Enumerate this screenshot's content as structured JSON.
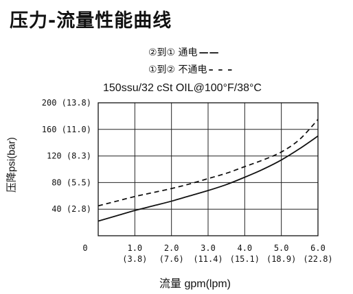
{
  "page": {
    "title": "压力-流量性能曲线"
  },
  "legend": [
    {
      "label": "②到① 通电",
      "sample": "——",
      "style": "solid"
    },
    {
      "label": "①到② 不通电",
      "sample": "– – –",
      "style": "dashed"
    }
  ],
  "chart_data": {
    "type": "line",
    "subtitle": "150ssu/32 cSt OIL@100°F/38°C",
    "xlabel": "流量 gpm(lpm)",
    "ylabel": "压降psi(bar)",
    "xlim": [
      0,
      6.0
    ],
    "ylim": [
      0,
      200
    ],
    "grid": true,
    "x_origin_label": "0",
    "x_ticks": [
      {
        "value": 1.0,
        "label": "1.0",
        "sub": "(3.8)"
      },
      {
        "value": 2.0,
        "label": "2.0",
        "sub": "(7.6)"
      },
      {
        "value": 3.0,
        "label": "3.0",
        "sub": "(11.4)"
      },
      {
        "value": 4.0,
        "label": "4.0",
        "sub": "(15.1)"
      },
      {
        "value": 5.0,
        "label": "5.0",
        "sub": "(18.9)"
      },
      {
        "value": 6.0,
        "label": "6.0",
        "sub": "(22.8)"
      }
    ],
    "y_ticks": [
      {
        "value": 40,
        "label": "40 (2.8)"
      },
      {
        "value": 80,
        "label": "80 (5.5)"
      },
      {
        "value": 120,
        "label": "120 (8.3)"
      },
      {
        "value": 160,
        "label": "160 (11.0)"
      },
      {
        "value": 200,
        "label": "200 (13.8)"
      }
    ],
    "series": [
      {
        "name": "②到① 通电",
        "style": "solid",
        "x": [
          0,
          0.5,
          1.0,
          1.5,
          2.0,
          2.5,
          3.0,
          3.5,
          4.0,
          4.5,
          5.0,
          5.5,
          6.0
        ],
        "y": [
          22,
          30,
          38,
          45,
          52,
          60,
          68,
          77,
          88,
          100,
          114,
          131,
          150
        ]
      },
      {
        "name": "①到② 不通电",
        "style": "dashed",
        "x": [
          0,
          0.5,
          1.0,
          1.5,
          2.0,
          2.5,
          3.0,
          3.5,
          4.0,
          4.5,
          5.0,
          5.5,
          6.0
        ],
        "y": [
          45,
          52,
          59,
          65,
          71,
          78,
          86,
          94,
          104,
          114,
          126,
          145,
          175
        ]
      }
    ]
  }
}
